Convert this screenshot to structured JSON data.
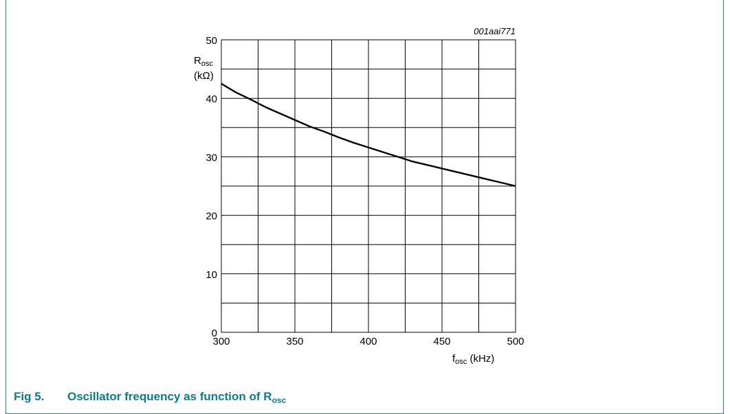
{
  "figure_id": "001aai771",
  "caption": {
    "number": "Fig 5.",
    "text": "Oscillator frequency as function of R",
    "subscript": "osc"
  },
  "y_axis_label": {
    "main": "R",
    "sub": "osc",
    "unit": "(kΩ)"
  },
  "x_axis_label": {
    "main": "f",
    "sub": "osc",
    "unit": "(kHz)"
  },
  "colors": {
    "caption": "#0a7c8c",
    "frame": "#2a7d8e",
    "line": "#000000"
  },
  "chart_data": {
    "type": "line",
    "title": "",
    "xlabel": "fosc (kHz)",
    "ylabel": "Rosc (kΩ)",
    "xlim": [
      300,
      500
    ],
    "ylim": [
      0,
      50
    ],
    "x_ticks": [
      300,
      350,
      400,
      450,
      500
    ],
    "y_ticks": [
      0,
      10,
      20,
      30,
      40,
      50
    ],
    "grid": true,
    "series": [
      {
        "x": [
          300,
          310,
          320,
          330,
          340,
          350,
          360,
          370,
          380,
          390,
          400,
          410,
          420,
          430,
          440,
          450,
          460,
          470,
          480,
          490,
          500
        ],
        "values": [
          42.5,
          41.0,
          39.8,
          38.5,
          37.4,
          36.3,
          35.2,
          34.3,
          33.3,
          32.4,
          31.6,
          30.8,
          30.0,
          29.2,
          28.6,
          28.0,
          27.4,
          26.8,
          26.2,
          25.6,
          25.0
        ]
      }
    ]
  }
}
